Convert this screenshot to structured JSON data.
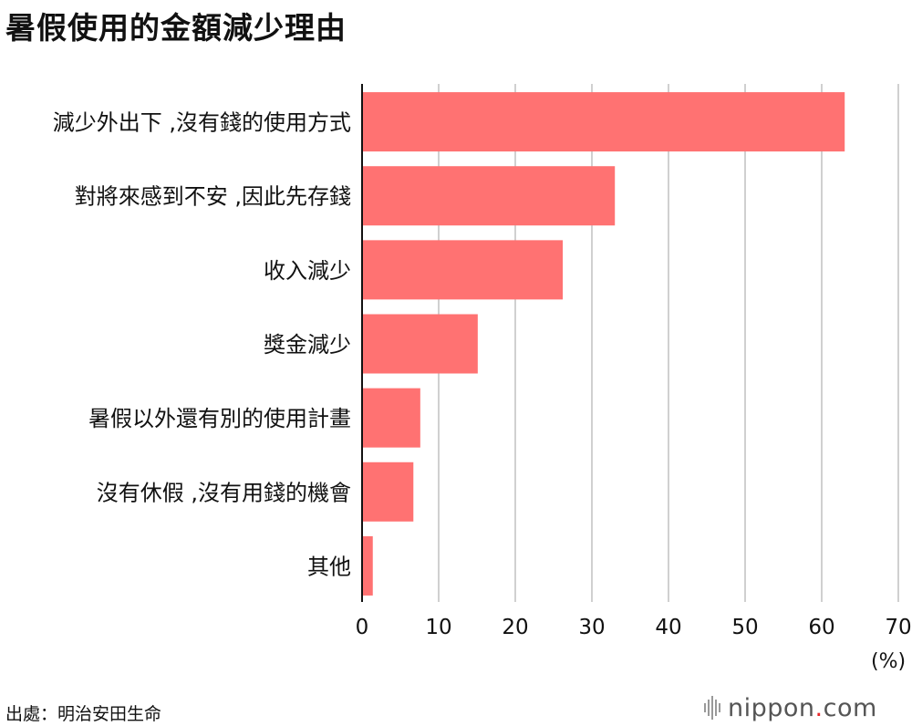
{
  "title": "暑假使用的金額減少理由",
  "unit_label": "(%)",
  "source": "出處：明治安田生命",
  "logo": {
    "name": "nippon",
    "dot": ".",
    "tld": "com",
    "icon": "sound-bars-icon",
    "accent": "#e8282b"
  },
  "chart_data": {
    "type": "bar",
    "orientation": "horizontal",
    "title": "暑假使用的金額減少理由",
    "xlabel": "(%)",
    "ylabel": "",
    "categories": [
      "減少外出下 ,沒有錢的使用方式",
      "對將來感到不安 ,因此先存錢",
      "收入減少",
      "獎金減少",
      "暑假以外還有別的使用計畫",
      "沒有休假 ,沒有用錢的機會",
      "其他"
    ],
    "values": [
      63.0,
      33.0,
      26.2,
      15.1,
      7.6,
      6.7,
      1.4
    ],
    "xlim": [
      0,
      70
    ],
    "ticks": [
      0,
      10,
      20,
      30,
      40,
      50,
      60,
      70
    ],
    "grid": true,
    "bar_color": "#ff7272",
    "grid_color": "#d0d0d0"
  }
}
